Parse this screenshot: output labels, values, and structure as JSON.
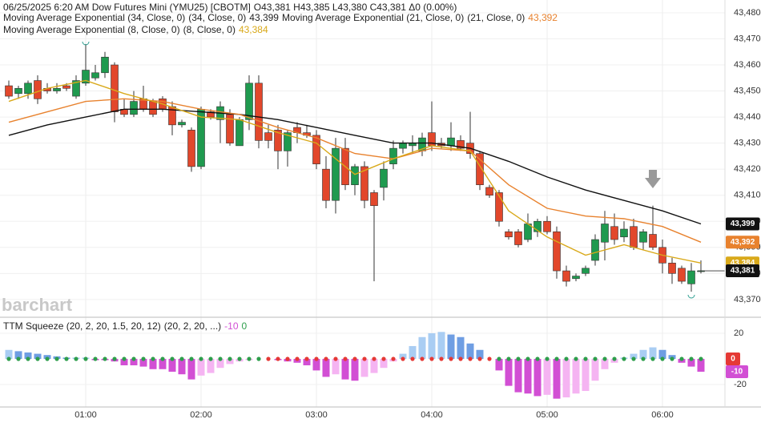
{
  "header": {
    "symbol": "06/25/2025  6:20 AM Dow Futures Mini (YMU25) [CBOTM]",
    "ohlc": "O43,381  H43,385  L43,380  C43,381  Δ0 (0.00%)"
  },
  "chart_data": {
    "type": "candlestick",
    "open": [
      43452,
      43449,
      43449,
      43454,
      43451,
      43450,
      43452,
      43448,
      43453,
      43455,
      43457,
      43460,
      43443,
      43441,
      43447,
      43446,
      43447,
      43444,
      43437,
      43435,
      43421,
      43442,
      43439,
      43441,
      43429,
      43439,
      43453,
      43434,
      43435,
      43427,
      43436,
      43434,
      43433,
      43420,
      43408,
      43428,
      43414,
      43421,
      43411,
      43413,
      43422,
      43428,
      43429,
      43427,
      43434,
      43430,
      43429,
      43431,
      43430,
      43426,
      43413,
      43411,
      43396,
      43396,
      43393,
      43396,
      43400,
      43396,
      43381,
      43378,
      43380,
      43385,
      43392,
      43398,
      43394,
      43398,
      43392,
      43395,
      43390,
      43384,
      43382,
      43376,
      43381
    ],
    "high": [
      43454,
      43452,
      43454,
      43456,
      43453,
      43453,
      43453,
      43456,
      43468,
      43460,
      43465,
      43461,
      43447,
      43450,
      43452,
      43447,
      43448,
      43446,
      43439,
      43436,
      43444,
      43443,
      43446,
      43443,
      43440,
      43456,
      43456,
      43437,
      43437,
      43435,
      43438,
      43437,
      43435,
      43425,
      43432,
      43432,
      43422,
      43423,
      43412,
      43423,
      43431,
      43431,
      43433,
      43434,
      43446,
      43432,
      43438,
      43433,
      43442,
      43427,
      43414,
      43412,
      43397,
      43397,
      43403,
      43401,
      43402,
      43398,
      43383,
      43380,
      43383,
      43395,
      43404,
      43403,
      43400,
      43401,
      43397,
      43406,
      43393,
      43386,
      43383,
      43384,
      43385
    ],
    "low": [
      43447,
      43447,
      43447,
      43445,
      43449,
      43449,
      43450,
      43447,
      43452,
      43454,
      43455,
      43438,
      43440,
      43440,
      43442,
      43440,
      43442,
      43433,
      43436,
      43419,
      43420,
      43439,
      43430,
      43429,
      43429,
      43435,
      43428,
      43428,
      43420,
      43421,
      43430,
      43432,
      43420,
      43405,
      43403,
      43412,
      43410,
      43405,
      43377,
      43408,
      43420,
      43426,
      43426,
      43425,
      43427,
      43428,
      43427,
      43427,
      43424,
      43412,
      43409,
      43398,
      43393,
      43390,
      43392,
      43394,
      43395,
      43378,
      43375,
      43377,
      43379,
      43383,
      43385,
      43391,
      43392,
      43389,
      43389,
      43389,
      43380,
      43376,
      43376,
      43373,
      43380
    ],
    "close": [
      43448,
      43451,
      43453,
      43447,
      43450,
      43451,
      43451,
      43454,
      43458,
      43457,
      43463,
      43442,
      43441,
      43446,
      43443,
      43441,
      43443,
      43437,
      43438,
      43421,
      43443,
      43440,
      43444,
      43430,
      43439,
      43453,
      43431,
      43431,
      43427,
      43434,
      43434,
      43433,
      43422,
      43408,
      43428,
      43414,
      43421,
      43408,
      43406,
      43420,
      43428,
      43430,
      43430,
      43432,
      43429,
      43429,
      43432,
      43428,
      43426,
      43414,
      43410,
      43400,
      43394,
      43391,
      43399,
      43400,
      43396,
      43381,
      43377,
      43379,
      43382,
      43393,
      43399,
      43393,
      43397,
      43390,
      43396,
      43390,
      43384,
      43380,
      43377,
      43381,
      43381
    ],
    "colors": {
      "up": "#1f9a4f",
      "down": "#e2472b",
      "wick": "#333333"
    },
    "xlim": [
      -0.917,
      74.5
    ],
    "xticks": [
      {
        "value": 8,
        "label": "01:00"
      },
      {
        "value": 20,
        "label": "02:00"
      },
      {
        "value": 32,
        "label": "03:00"
      },
      {
        "value": 44,
        "label": "04:00"
      },
      {
        "value": 56,
        "label": "05:00"
      },
      {
        "value": 68,
        "label": "06:00"
      }
    ],
    "ylim": [
      43363.5,
      43484.9
    ],
    "yticks": [
      {
        "value": 43370,
        "label": "43,370"
      },
      {
        "value": 43380,
        "label": "43,380"
      },
      {
        "value": 43390,
        "label": "43,390"
      },
      {
        "value": 43400,
        "label": "43,400"
      },
      {
        "value": 43410,
        "label": "43,410"
      },
      {
        "value": 43420,
        "label": "43,420"
      },
      {
        "value": 43430,
        "label": "43,430"
      },
      {
        "value": 43440,
        "label": "43,440"
      },
      {
        "value": 43450,
        "label": "43,450"
      },
      {
        "value": 43460,
        "label": "43,460"
      },
      {
        "value": 43470,
        "label": "43,470"
      },
      {
        "value": 43480,
        "label": "43,480"
      }
    ],
    "grid": true,
    "series": [
      {
        "name": "Moving Average Exponential (34, Close, 0)",
        "params": "(34, Close, 0)",
        "color": "#111111",
        "last_label": "43,399",
        "x": [
          0,
          4,
          8,
          12,
          16,
          20,
          24,
          28,
          32,
          36,
          40,
          44,
          48,
          52,
          56,
          60,
          64,
          68,
          72
        ],
        "values": [
          43433,
          43437,
          43440,
          43443,
          43443,
          43442,
          43441,
          43439,
          43436,
          43433,
          43430,
          43430,
          43428,
          43423,
          43417,
          43412,
          43408,
          43404,
          43399
        ]
      },
      {
        "name": "Moving Average Exponential (21, Close, 0)",
        "params": "(21, Close, 0)",
        "color": "#e8822e",
        "last_label": "43,392",
        "x": [
          0,
          4,
          8,
          12,
          16,
          20,
          24,
          28,
          32,
          36,
          40,
          44,
          48,
          52,
          56,
          60,
          64,
          68,
          72
        ],
        "values": [
          43438,
          43442,
          43446,
          43447,
          43446,
          43443,
          43441,
          43436,
          43432,
          43426,
          43424,
          43428,
          43427,
          43414,
          43405,
          43402,
          43401,
          43398,
          43392
        ]
      },
      {
        "name": "Moving Average Exponential (8, Close, 0)",
        "params": "(8, Close, 0)",
        "color": "#d9a91a",
        "last_label": "43,384",
        "x": [
          0,
          4,
          8,
          12,
          16,
          20,
          24,
          28,
          32,
          36,
          40,
          44,
          48,
          52,
          56,
          60,
          64,
          68,
          72
        ],
        "values": [
          43446,
          43451,
          43454,
          43449,
          43445,
          43440,
          43439,
          43434,
          43430,
          43418,
          43424,
          43429,
          43427,
          43404,
          43394,
          43387,
          43391,
          43387,
          43384
        ]
      }
    ],
    "last_price_label": "43,381",
    "watermark": "barchart",
    "indicator": {
      "type": "bar",
      "title": "TTM Squeeze (20, 2, 20, 1.5, 20, 12)",
      "params": "(20, 2, 20, ...)",
      "histogram_label": "-10",
      "squeeze_label": "0",
      "values": [
        7,
        6,
        5,
        4,
        3,
        2,
        1,
        1,
        1,
        -1,
        -1,
        -2,
        -5,
        -5,
        -6,
        -8,
        -8,
        -10,
        -12,
        -16,
        -13,
        -11,
        -7,
        -4,
        -2,
        -1,
        0,
        0,
        -1,
        -2,
        -3,
        -5,
        -9,
        -14,
        -12,
        -16,
        -17,
        -14,
        -11,
        -7,
        -2,
        4,
        10,
        17,
        20,
        21,
        19,
        17,
        12,
        7,
        0,
        -9,
        -21,
        -26,
        -27,
        -29,
        -28,
        -31,
        -30,
        -27,
        -25,
        -17,
        -8,
        -3,
        1,
        4,
        7,
        9,
        7,
        3,
        -3,
        -6,
        -10
      ],
      "colors": {
        "pos_up": "#a9cdf3",
        "pos_down": "#6f9ee3",
        "neg_down": "#d24fd4",
        "neg_up": "#f5b4f2",
        "dot_off": "#2e9e4c",
        "dot_on": "#e53935"
      },
      "squeeze_on": [
        [
          27,
          50
        ]
      ],
      "ylim": [
        -35.6,
        31.2
      ],
      "yticks": [
        20,
        -20
      ]
    }
  }
}
